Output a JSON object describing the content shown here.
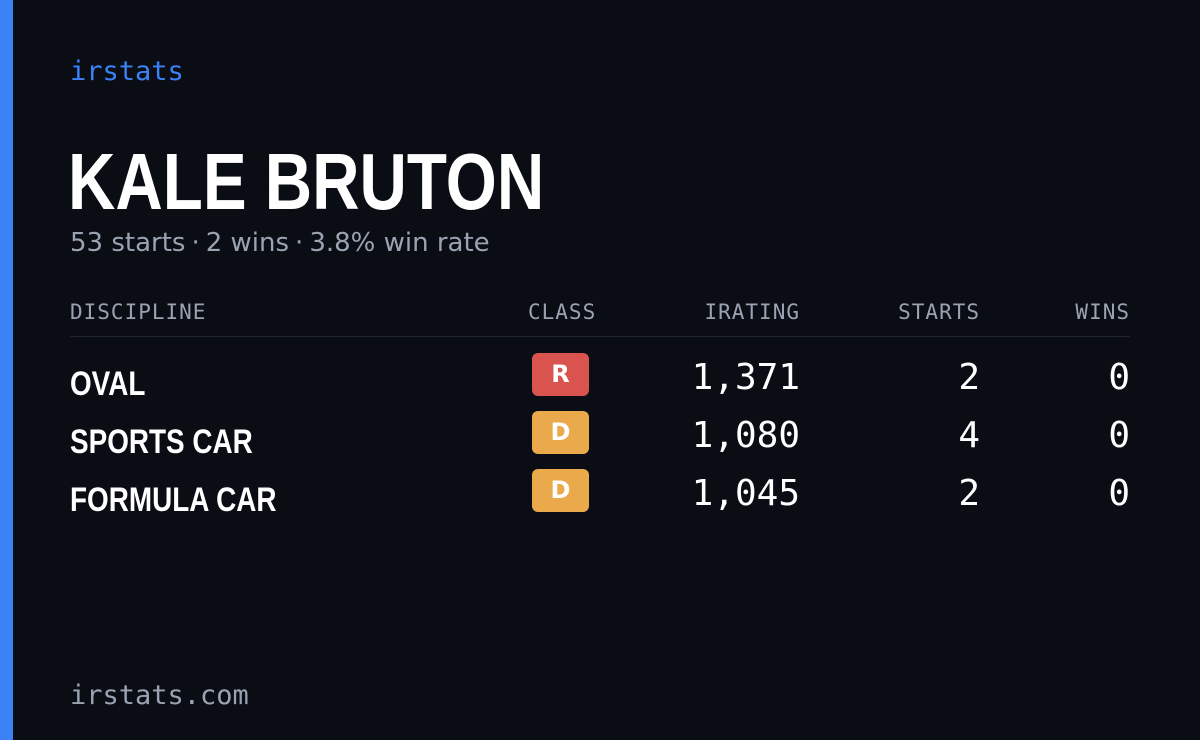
{
  "brand": "irstats",
  "driver": {
    "name": "KALE BRUTON",
    "starts_text": "53 starts",
    "wins_text": "2 wins",
    "winrate_text": "3.8% win rate",
    "separator": "·"
  },
  "table": {
    "headers": {
      "discipline": "DISCIPLINE",
      "class": "CLASS",
      "irating": "IRATING",
      "starts": "STARTS",
      "wins": "WINS"
    },
    "rows": [
      {
        "discipline": "OVAL",
        "class": "R",
        "class_color": "#d9534f",
        "irating": "1,371",
        "starts": "2",
        "wins": "0"
      },
      {
        "discipline": "SPORTS CAR",
        "class": "D",
        "class_color": "#eaaa4b",
        "irating": "1,080",
        "starts": "4",
        "wins": "0"
      },
      {
        "discipline": "FORMULA CAR",
        "class": "D",
        "class_color": "#eaaa4b",
        "irating": "1,045",
        "starts": "2",
        "wins": "0"
      }
    ]
  },
  "footer": "irstats.com",
  "colors": {
    "background": "#0a0d14",
    "accent": "#3b82f6",
    "muted": "#9aa3b2"
  }
}
